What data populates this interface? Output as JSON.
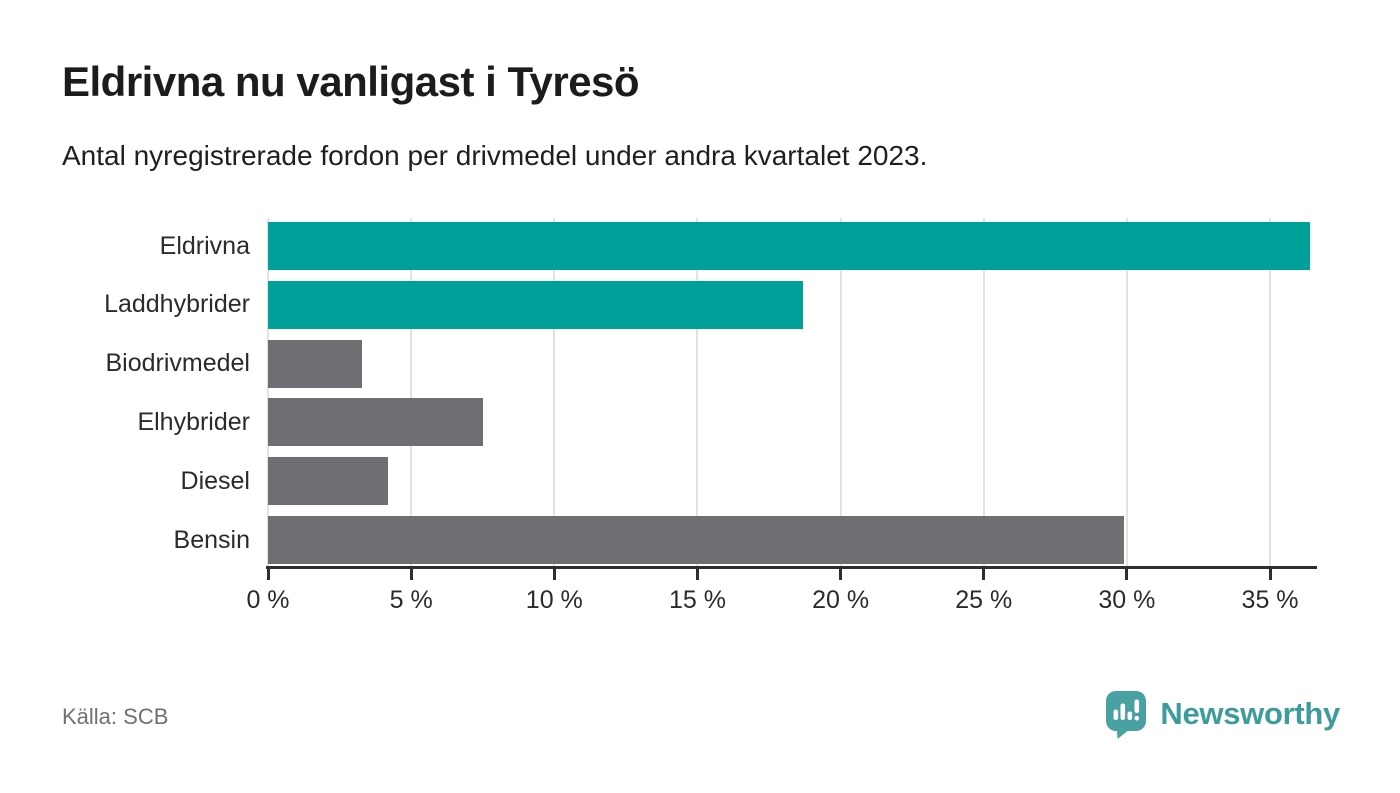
{
  "chart_data": {
    "type": "bar",
    "orientation": "horizontal",
    "title": "Eldrivna nu vanligast i Tyresö",
    "subtitle": "Antal nyregistrerade fordon per drivmedel under andra kvartalet 2023.",
    "source": "Källa: SCB",
    "categories": [
      "Eldrivna",
      "Laddhybrider",
      "Biodrivmedel",
      "Elhybrider",
      "Diesel",
      "Bensin"
    ],
    "values": [
      36.4,
      18.7,
      3.3,
      7.5,
      4.2,
      29.9
    ],
    "unit": "%",
    "xlim": [
      0,
      36.5
    ],
    "xticks": [
      0,
      5,
      10,
      15,
      20,
      25,
      30,
      35
    ],
    "xtick_labels": [
      "0 %",
      "5 %",
      "10 %",
      "15 %",
      "20 %",
      "25 %",
      "30 %",
      "35 %"
    ],
    "bar_colors": [
      "#00A09A",
      "#00A09A",
      "#6E6E73",
      "#6E6E73",
      "#6E6E73",
      "#6E6E73"
    ],
    "grid": true,
    "legend": false
  },
  "footer": {
    "brand": "Newsworthy"
  },
  "colors": {
    "accent_teal": "#00A09A",
    "bar_gray": "#6E6E73",
    "gridline": "#E3E3E3",
    "axis": "#2E2E2E",
    "text": "#1C1C1C",
    "muted_text": "#6D7176",
    "brand_text": "#3E9C9C",
    "brand_icon": "#4AA1A1"
  },
  "icons": {
    "brand_icon": "newsworthy-speech-bubble-chart-icon"
  }
}
